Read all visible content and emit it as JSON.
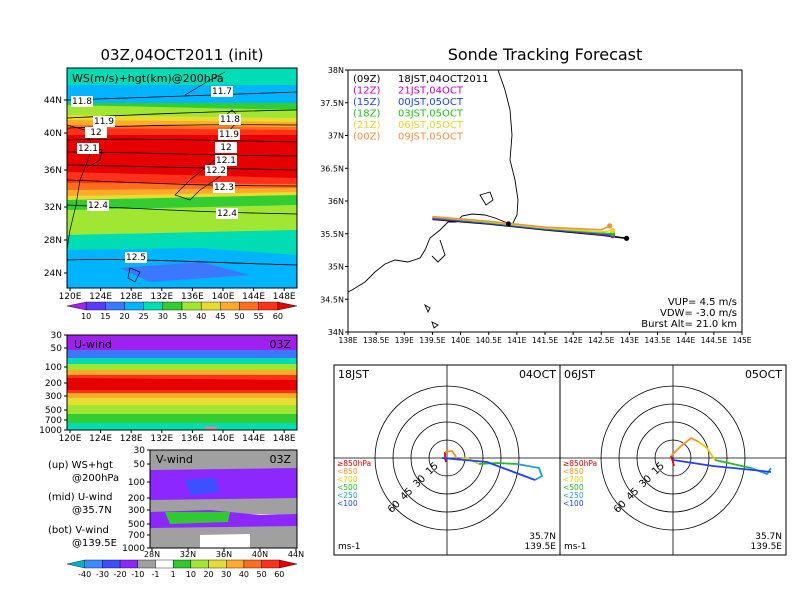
{
  "main": {
    "init_title": "03Z,04OCT2011 (init)",
    "forecast_title": "Sonde Tracking Forecast"
  },
  "map_panel": {
    "field_label": "WS(m/s)+hgt(km)@200hPa",
    "lon_ticks": [
      "120E",
      "124E",
      "128E",
      "132E",
      "136E",
      "140E",
      "144E",
      "148E"
    ],
    "lat_ticks": [
      "44N",
      "40N",
      "36N",
      "32N",
      "28N",
      "24N"
    ],
    "contour_labels": [
      "11.8",
      "11.7",
      "11.9",
      "11.8",
      "12",
      "11.9",
      "12.1",
      "12",
      "12.1",
      "12.2",
      "12.3",
      "12.4",
      "12.4",
      "12.5"
    ],
    "colorbar_ticks": [
      "10",
      "15",
      "20",
      "25",
      "30",
      "35",
      "40",
      "45",
      "50",
      "55",
      "60"
    ],
    "colorbar_colors": [
      "#a020f0",
      "#5a3cff",
      "#3c78ff",
      "#00b4ff",
      "#00dcb4",
      "#32cd32",
      "#a0e632",
      "#e6dc32",
      "#ffaa28",
      "#ff6e1e",
      "#ff3219",
      "#e60000"
    ]
  },
  "uwind_panel": {
    "label": "U-wind",
    "time": "03Z",
    "pressure_ticks": [
      "30",
      "50",
      "100",
      "200",
      "300",
      "500",
      "700",
      "1000"
    ],
    "lon_ticks": [
      "120E",
      "124E",
      "128E",
      "132E",
      "136E",
      "140E",
      "144E",
      "148E"
    ]
  },
  "vwind_panel": {
    "label": "V-wind",
    "time": "03Z",
    "pressure_ticks": [
      "30",
      "50",
      "100",
      "200",
      "300",
      "500",
      "700",
      "1000"
    ],
    "lat_ticks": [
      "28N",
      "32N",
      "36N",
      "40N",
      "44N"
    ]
  },
  "legend_text": {
    "up": "(up) WS+hgt",
    "up_sub": "@200hPa",
    "mid": "(mid) U-wind",
    "mid_sub": "@35.7N",
    "bot": "(bot) V-wind",
    "bot_sub": "@139.5E"
  },
  "bottom_colorbar": {
    "ticks": [
      "-40",
      "-30",
      "-20",
      "-10",
      "-1",
      "1",
      "10",
      "20",
      "30",
      "40",
      "50",
      "60"
    ],
    "colors": [
      "#00b4c8",
      "#3c8cff",
      "#3c50ff",
      "#8c28ff",
      "#a0a0a0",
      "#ffffff",
      "#32c832",
      "#a0e632",
      "#e6dc32",
      "#ffaa28",
      "#ff6e1e",
      "#ff3219",
      "#e60000"
    ]
  },
  "track_panel": {
    "lat_ticks": [
      "38N",
      "37.5N",
      "37N",
      "36.5N",
      "36N",
      "35.5N",
      "35N",
      "34.5N",
      "34N"
    ],
    "lon_ticks": [
      "138E",
      "138.5E",
      "139E",
      "139.5E",
      "140E",
      "140.5E",
      "141E",
      "141.5E",
      "142E",
      "142.5E",
      "143E",
      "143.5E",
      "144E",
      "144.5E",
      "145E"
    ],
    "launches": [
      {
        "utc": "(09Z)",
        "jst": "18JST,04OCT2011",
        "color": "#000000"
      },
      {
        "utc": "(12Z)",
        "jst": "21JST,04OCT",
        "color": "#c000c0"
      },
      {
        "utc": "(15Z)",
        "jst": "00JST,05OCT",
        "color": "#2040ff"
      },
      {
        "utc": "(18Z)",
        "jst": "03JST,05OCT",
        "color": "#20c020"
      },
      {
        "utc": "(21Z)",
        "jst": "06JST,05OCT",
        "color": "#e8d820"
      },
      {
        "utc": "(00Z)",
        "jst": "09JST,05OCT",
        "color": "#f09040"
      }
    ],
    "vup": "VUP= 4.5 m/s",
    "vdw": "VDW= -3.0 m/s",
    "burst": "Burst Alt= 21.0 km"
  },
  "hodo_left": {
    "time": "18JST",
    "date": "04OCT",
    "ring_labels": [
      "15",
      "30",
      "45",
      "60"
    ],
    "units": "ms-1",
    "lat": "35.7N",
    "lon": "139.5E"
  },
  "hodo_right": {
    "time": "06JST",
    "date": "05OCT",
    "ring_labels": [
      "15",
      "30",
      "45",
      "60"
    ],
    "units": "ms-1",
    "lat": "35.7N",
    "lon": "139.5E"
  },
  "hodo_legend": [
    {
      "label": "≥850hPa",
      "color": "#e00000"
    },
    {
      "label": "<850",
      "color": "#ff9020"
    },
    {
      "label": "<700",
      "color": "#e0d000"
    },
    {
      "label": "<500",
      "color": "#20c020"
    },
    {
      "label": "<250",
      "color": "#20a0d0"
    },
    {
      "label": "<100",
      "color": "#2040ff"
    }
  ],
  "chart_data": [
    {
      "type": "heatmap",
      "title": "WS(m/s)+hgt(km)@200hPa",
      "x_range": [
        "120E",
        "150E"
      ],
      "y_range": [
        "21N",
        "48N"
      ],
      "colorbar": [
        10,
        15,
        20,
        25,
        30,
        35,
        40,
        45,
        50,
        55,
        60
      ],
      "contour_labels": [
        11.7,
        11.8,
        11.9,
        12,
        12.1,
        12.2,
        12.3,
        12.4,
        12.5
      ]
    },
    {
      "type": "line",
      "title": "Sonde Tracking Forecast",
      "xlim": [
        138,
        145
      ],
      "ylim": [
        34,
        38
      ],
      "series": [
        {
          "name": "(09Z) 18JST,04OCT2011",
          "x": [
            139.5,
            140.5,
            141.5,
            142.5,
            142.95
          ],
          "y": [
            35.72,
            35.65,
            35.56,
            35.48,
            35.43
          ]
        },
        {
          "name": "(12Z) 21JST,04OCT",
          "x": [
            139.5,
            140.5,
            141.5,
            142.5,
            142.7
          ],
          "y": [
            35.73,
            35.66,
            35.57,
            35.49,
            35.47
          ]
        },
        {
          "name": "(15Z) 00JST,05OCT",
          "x": [
            139.5,
            140.5,
            141.5,
            142.5,
            142.7
          ],
          "y": [
            35.74,
            35.66,
            35.57,
            35.5,
            35.49
          ]
        },
        {
          "name": "(18Z) 03JST,05OCT",
          "x": [
            139.5,
            140.5,
            141.5,
            142.5,
            142.7
          ],
          "y": [
            35.75,
            35.67,
            35.58,
            35.51,
            35.5
          ]
        },
        {
          "name": "(21Z) 06JST,05OCT",
          "x": [
            139.5,
            140.5,
            141.5,
            142.5,
            142.7
          ],
          "y": [
            35.76,
            35.68,
            35.59,
            35.53,
            35.55
          ]
        },
        {
          "name": "(00Z) 09JST,05OCT",
          "x": [
            139.5,
            140.5,
            141.5,
            142.5,
            142.65
          ],
          "y": [
            35.76,
            35.69,
            35.6,
            35.56,
            35.62
          ]
        }
      ]
    }
  ]
}
